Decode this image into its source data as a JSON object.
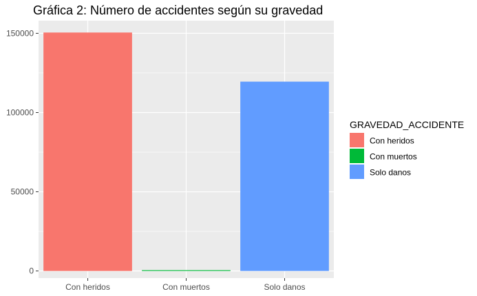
{
  "chart_data": {
    "type": "bar",
    "title": "Gráfica 2: Número de accidentes según su gravedad",
    "xlabel": "",
    "ylabel": "",
    "categories": [
      "Con heridos",
      "Con muertos",
      "Solo danos"
    ],
    "values": [
      150500,
      500,
      119500
    ],
    "colors": [
      "#F8766D",
      "#00BA38",
      "#619CFF"
    ],
    "ylim": [
      -4500,
      158000
    ],
    "yticks": [
      0,
      50000,
      100000,
      150000
    ],
    "ytick_labels": [
      "0",
      "50000",
      "100000",
      "150000"
    ],
    "grid": true,
    "panel_background": "#EBEBEB",
    "grid_color": "#FFFFFF",
    "legend": {
      "title": "GRAVEDAD_ACCIDENTE",
      "position": "right",
      "items": [
        "Con heridos",
        "Con muertos",
        "Solo danos"
      ]
    }
  }
}
